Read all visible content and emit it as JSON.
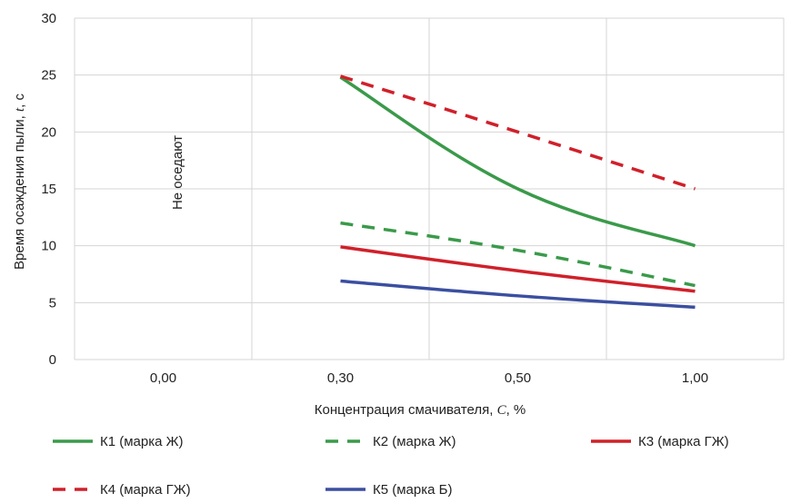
{
  "chart_data": {
    "type": "line",
    "categories": [
      "0,00",
      "0,30",
      "0,50",
      "1,00"
    ],
    "ylim": [
      0,
      30
    ],
    "yticks": [
      0,
      5,
      10,
      15,
      20,
      25,
      30
    ],
    "xlabel_parts": [
      "Концентрация смачивателя, ",
      "C",
      ", %"
    ],
    "ylabel_parts": [
      "Время осаждения пыли, ",
      "t",
      ", с"
    ],
    "annotation": "Не оседают",
    "grid": "both",
    "legend_position": "bottom",
    "series": [
      {
        "name": "К1 (марка Ж)",
        "color": "#3a9a4a",
        "dash": "solid",
        "values": [
          null,
          24.8,
          15.0,
          10.0
        ]
      },
      {
        "name": "К2 (марка Ж)",
        "color": "#3a9a4a",
        "dash": "dashed",
        "values": [
          null,
          12.0,
          9.6,
          6.5
        ]
      },
      {
        "name": "К3 (марка ГЖ)",
        "color": "#d0202a",
        "dash": "solid",
        "values": [
          null,
          9.9,
          7.8,
          6.0
        ]
      },
      {
        "name": "К4 (марка ГЖ)",
        "color": "#d0202a",
        "dash": "dashed",
        "values": [
          null,
          24.9,
          20.0,
          15.0
        ]
      },
      {
        "name": "К5 (марка Б)",
        "color": "#3b4fa0",
        "dash": "solid",
        "values": [
          null,
          6.9,
          5.6,
          4.6
        ]
      }
    ]
  }
}
